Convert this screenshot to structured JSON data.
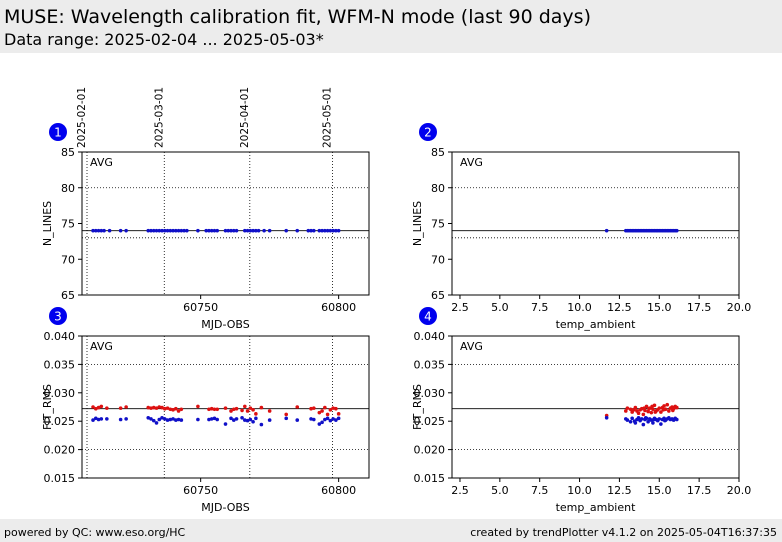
{
  "header": {
    "title": "MUSE: Wavelength calibration fit, WFM-N mode (last 90 days)",
    "subtitle": "Data range: 2025-02-04 ... 2025-05-03*"
  },
  "footer": {
    "left": "powered by QC: www.eso.org/HC",
    "right": "created by trendPlotter v4.1.2 on 2025-05-04T16:37:35"
  },
  "colors": {
    "blue": "#1010c8",
    "red": "#dd1111",
    "badge": "#0000ee",
    "header_bg": "#ececec"
  },
  "chart_data": [
    {
      "id": 1,
      "type": "scatter",
      "badge": "1",
      "annotation": "AVG",
      "xlabel": "MJD-OBS",
      "ylabel": "N_LINES",
      "xlim": [
        60707,
        60811
      ],
      "ylim": [
        65,
        85
      ],
      "xticks": [
        60750,
        60800
      ],
      "xtick_labels": [
        "60750",
        "60800"
      ],
      "yticks": [
        65,
        70,
        75,
        80,
        85
      ],
      "ytick_labels": [
        "65",
        "70",
        "75",
        "80",
        "85"
      ],
      "date_markers": [
        {
          "x": 60707,
          "label": "2025-02-01"
        },
        {
          "x": 60735,
          "label": "2025-03-01"
        },
        {
          "x": 60766,
          "label": "2025-04-01"
        },
        {
          "x": 60796,
          "label": "2025-05-01"
        }
      ],
      "ref_lines": [
        {
          "y": 74,
          "style": "solid"
        },
        {
          "y": 73,
          "style": "dotted"
        }
      ],
      "grid_y": [
        80
      ],
      "series": [
        {
          "name": "N_LINES",
          "color": "blue",
          "x": [
            60711,
            60712,
            60713,
            60714,
            60715,
            60717,
            60721,
            60723,
            60731,
            60732,
            60733,
            60734,
            60735,
            60736,
            60737,
            60738,
            60739,
            60740,
            60741,
            60742,
            60743,
            60744,
            60745,
            60749,
            60752,
            60753,
            60754,
            60755,
            60756,
            60759,
            60760,
            60761,
            60762,
            60763,
            60766,
            60767,
            60768,
            60769,
            60770,
            60771,
            60773,
            60775,
            60781,
            60785,
            60789,
            60790,
            60791,
            60793,
            60794,
            60795,
            60796,
            60797,
            60798,
            60799,
            60800
          ],
          "y": [
            74,
            74,
            74,
            74,
            74,
            74,
            74,
            74,
            74,
            74,
            74,
            74,
            74,
            74,
            74,
            74,
            74,
            74,
            74,
            74,
            74,
            74,
            74,
            74,
            74,
            74,
            74,
            74,
            74,
            74,
            74,
            74,
            74,
            74,
            74,
            74,
            74,
            74,
            74,
            74,
            74,
            74,
            74,
            74,
            74,
            74,
            74,
            74,
            74,
            74,
            74,
            74,
            74,
            74,
            74
          ]
        }
      ]
    },
    {
      "id": 2,
      "type": "scatter",
      "badge": "2",
      "annotation": "AVG",
      "xlabel": "temp_ambient",
      "ylabel": "N_LINES",
      "xlim": [
        2,
        20
      ],
      "ylim": [
        65,
        85
      ],
      "xticks": [
        2.5,
        5,
        7.5,
        10,
        12.5,
        15,
        17.5,
        20
      ],
      "xtick_labels": [
        "2.5",
        "5.0",
        "7.5",
        "10.0",
        "12.5",
        "15.0",
        "17.5",
        "20.0"
      ],
      "yticks": [
        65,
        70,
        75,
        80,
        85
      ],
      "ytick_labels": [
        "65",
        "70",
        "75",
        "80",
        "85"
      ],
      "ref_lines": [
        {
          "y": 74,
          "style": "solid"
        },
        {
          "y": 73,
          "style": "dotted"
        }
      ],
      "grid_y": [
        80
      ],
      "series": [
        {
          "name": "N_LINES",
          "color": "blue",
          "x": [
            11.7,
            12.9,
            13.0,
            13.1,
            13.2,
            13.3,
            13.4,
            13.5,
            13.6,
            13.7,
            13.8,
            13.9,
            14.0,
            14.1,
            14.2,
            14.3,
            14.4,
            14.5,
            14.6,
            14.7,
            14.8,
            14.9,
            15.0,
            15.1,
            15.2,
            15.3,
            15.4,
            15.5,
            15.6,
            15.7,
            15.8,
            15.9,
            16.0,
            16.1
          ],
          "y": [
            74,
            74,
            74,
            74,
            74,
            74,
            74,
            74,
            74,
            74,
            74,
            74,
            74,
            74,
            74,
            74,
            74,
            74,
            74,
            74,
            74,
            74,
            74,
            74,
            74,
            74,
            74,
            74,
            74,
            74,
            74,
            74,
            74,
            74
          ]
        }
      ]
    },
    {
      "id": 3,
      "type": "scatter",
      "badge": "3",
      "annotation": "AVG",
      "xlabel": "MJD-OBS",
      "ylabel": "FIT_RMS",
      "xlim": [
        60707,
        60811
      ],
      "ylim": [
        0.015,
        0.04
      ],
      "xticks": [
        60750,
        60800
      ],
      "xtick_labels": [
        "60750",
        "60800"
      ],
      "yticks": [
        0.015,
        0.02,
        0.025,
        0.03,
        0.035,
        0.04
      ],
      "ytick_labels": [
        "0.015",
        "0.020",
        "0.025",
        "0.030",
        "0.035",
        "0.040"
      ],
      "date_markers": [
        {
          "x": 60707,
          "label": "2025-02-01"
        },
        {
          "x": 60735,
          "label": "2025-03-01"
        },
        {
          "x": 60766,
          "label": "2025-04-01"
        },
        {
          "x": 60796,
          "label": "2025-05-01"
        }
      ],
      "ref_lines": [
        {
          "y": 0.0272,
          "style": "solid"
        }
      ],
      "grid_y": [
        0.02,
        0.035
      ],
      "series": [
        {
          "name": "FIT_RMS red",
          "color": "red",
          "x": [
            60711,
            60712,
            60713,
            60714,
            60716,
            60721,
            60723,
            60731,
            60732,
            60733,
            60734,
            60735,
            60736,
            60737,
            60738,
            60739,
            60740,
            60741,
            60742,
            60743,
            60749,
            60753,
            60754,
            60755,
            60756,
            60759,
            60761,
            60762,
            60763,
            60765,
            60766,
            60767,
            60768,
            60769,
            60770,
            60772,
            60775,
            60781,
            60785,
            60790,
            60791,
            60793,
            60794,
            60795,
            60796,
            60797,
            60798,
            60799,
            60800
          ],
          "y": [
            0.0275,
            0.0272,
            0.0274,
            0.0276,
            0.0273,
            0.0273,
            0.0275,
            0.0274,
            0.0273,
            0.0274,
            0.0273,
            0.0275,
            0.0274,
            0.0272,
            0.0273,
            0.0271,
            0.027,
            0.0272,
            0.0268,
            0.0271,
            0.0276,
            0.0271,
            0.0272,
            0.0271,
            0.0271,
            0.0273,
            0.0268,
            0.0271,
            0.0272,
            0.0269,
            0.0276,
            0.0268,
            0.0273,
            0.027,
            0.0263,
            0.0274,
            0.0268,
            0.0262,
            0.0275,
            0.0272,
            0.0273,
            0.0265,
            0.0268,
            0.0274,
            0.0262,
            0.027,
            0.0273,
            0.0272,
            0.0263
          ]
        },
        {
          "name": "FIT_RMS blue",
          "color": "blue",
          "x": [
            60711,
            60712,
            60713,
            60714,
            60716,
            60721,
            60723,
            60731,
            60732,
            60733,
            60734,
            60735,
            60736,
            60737,
            60738,
            60739,
            60740,
            60741,
            60742,
            60743,
            60749,
            60753,
            60754,
            60755,
            60756,
            60759,
            60761,
            60762,
            60763,
            60765,
            60766,
            60767,
            60768,
            60769,
            60770,
            60772,
            60775,
            60781,
            60785,
            60790,
            60791,
            60793,
            60794,
            60795,
            60796,
            60797,
            60798,
            60799,
            60800
          ],
          "y": [
            0.0252,
            0.0255,
            0.0253,
            0.0254,
            0.0254,
            0.0253,
            0.0254,
            0.0256,
            0.0254,
            0.0251,
            0.0247,
            0.0253,
            0.0256,
            0.0254,
            0.0252,
            0.0253,
            0.0254,
            0.0252,
            0.0253,
            0.0252,
            0.0253,
            0.0253,
            0.0254,
            0.0255,
            0.0253,
            0.0245,
            0.0255,
            0.0252,
            0.0254,
            0.0256,
            0.0252,
            0.0251,
            0.0253,
            0.0249,
            0.0255,
            0.0244,
            0.0252,
            0.0255,
            0.0252,
            0.0254,
            0.0253,
            0.0245,
            0.0248,
            0.0253,
            0.0255,
            0.0251,
            0.0254,
            0.0252,
            0.0255
          ]
        }
      ]
    },
    {
      "id": 4,
      "type": "scatter",
      "badge": "4",
      "annotation": "AVG",
      "xlabel": "temp_ambient",
      "ylabel": "FIT_RMS",
      "xlim": [
        2,
        20
      ],
      "ylim": [
        0.015,
        0.04
      ],
      "xticks": [
        2.5,
        5,
        7.5,
        10,
        12.5,
        15,
        17.5,
        20
      ],
      "xtick_labels": [
        "2.5",
        "5.0",
        "7.5",
        "10.0",
        "12.5",
        "15.0",
        "17.5",
        "20.0"
      ],
      "yticks": [
        0.015,
        0.02,
        0.025,
        0.03,
        0.035,
        0.04
      ],
      "ytick_labels": [
        "0.015",
        "0.020",
        "0.025",
        "0.030",
        "0.035",
        "0.040"
      ],
      "ref_lines": [
        {
          "y": 0.0272,
          "style": "solid"
        }
      ],
      "grid_y": [
        0.02,
        0.035
      ],
      "series": [
        {
          "name": "FIT_RMS red",
          "color": "red",
          "x": [
            11.7,
            12.9,
            13.0,
            13.2,
            13.3,
            13.5,
            13.6,
            13.7,
            13.8,
            13.9,
            14.0,
            14.1,
            14.2,
            14.3,
            14.4,
            14.5,
            14.6,
            14.7,
            14.8,
            14.9,
            15.0,
            15.1,
            15.2,
            15.3,
            15.4,
            15.5,
            15.6,
            15.7,
            15.8,
            15.9,
            16.0,
            16.1,
            14.35,
            14.75,
            15.25,
            15.85,
            13.4,
            14.05,
            14.55
          ],
          "y": [
            0.026,
            0.0268,
            0.0273,
            0.0271,
            0.0266,
            0.0274,
            0.0268,
            0.0264,
            0.027,
            0.0272,
            0.0262,
            0.0269,
            0.0276,
            0.0267,
            0.0273,
            0.0265,
            0.0271,
            0.0278,
            0.0268,
            0.027,
            0.0273,
            0.0266,
            0.0274,
            0.0277,
            0.0271,
            0.0279,
            0.0268,
            0.0273,
            0.0275,
            0.0272,
            0.0276,
            0.0274,
            0.0272,
            0.0266,
            0.027,
            0.0269,
            0.027,
            0.0273,
            0.0276
          ]
        },
        {
          "name": "FIT_RMS blue",
          "color": "blue",
          "x": [
            11.7,
            12.9,
            13.0,
            13.2,
            13.3,
            13.5,
            13.6,
            13.7,
            13.8,
            13.9,
            14.0,
            14.1,
            14.2,
            14.3,
            14.4,
            14.5,
            14.6,
            14.7,
            14.8,
            14.9,
            15.0,
            15.1,
            15.2,
            15.3,
            15.4,
            15.5,
            15.6,
            15.7,
            15.8,
            15.9,
            16.0,
            16.1,
            13.45,
            14.15,
            14.65,
            15.35
          ],
          "y": [
            0.0256,
            0.0254,
            0.0252,
            0.0249,
            0.0255,
            0.0247,
            0.0253,
            0.0256,
            0.0251,
            0.0254,
            0.0244,
            0.0253,
            0.0255,
            0.0249,
            0.0254,
            0.0252,
            0.0247,
            0.0255,
            0.0253,
            0.0251,
            0.0254,
            0.0245,
            0.0253,
            0.0255,
            0.0252,
            0.0254,
            0.0256,
            0.0253,
            0.0254,
            0.0252,
            0.0255,
            0.0253,
            0.025,
            0.0256,
            0.0253,
            0.0251
          ]
        }
      ]
    }
  ]
}
